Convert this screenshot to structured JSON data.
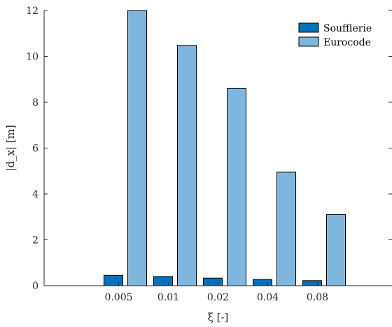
{
  "chart_data": {
    "type": "bar",
    "categories": [
      "0.005",
      "0.01",
      "0.02",
      "0.04",
      "0.08"
    ],
    "series": [
      {
        "name": "Soufflerie",
        "values": [
          0.45,
          0.4,
          0.33,
          0.27,
          0.22
        ],
        "color": "#0072bd"
      },
      {
        "name": "Eurocode",
        "values": [
          12.0,
          10.48,
          8.6,
          4.95,
          3.1
        ],
        "color": "#7fb6e0"
      }
    ],
    "title": "",
    "xlabel": "ξ [-]",
    "ylabel": "|d_x| [m]",
    "ylim": [
      0,
      12
    ],
    "yticks": [
      "0",
      "2",
      "4",
      "6",
      "8",
      "10",
      "12"
    ],
    "grid": false,
    "legend_position": "top-right"
  }
}
